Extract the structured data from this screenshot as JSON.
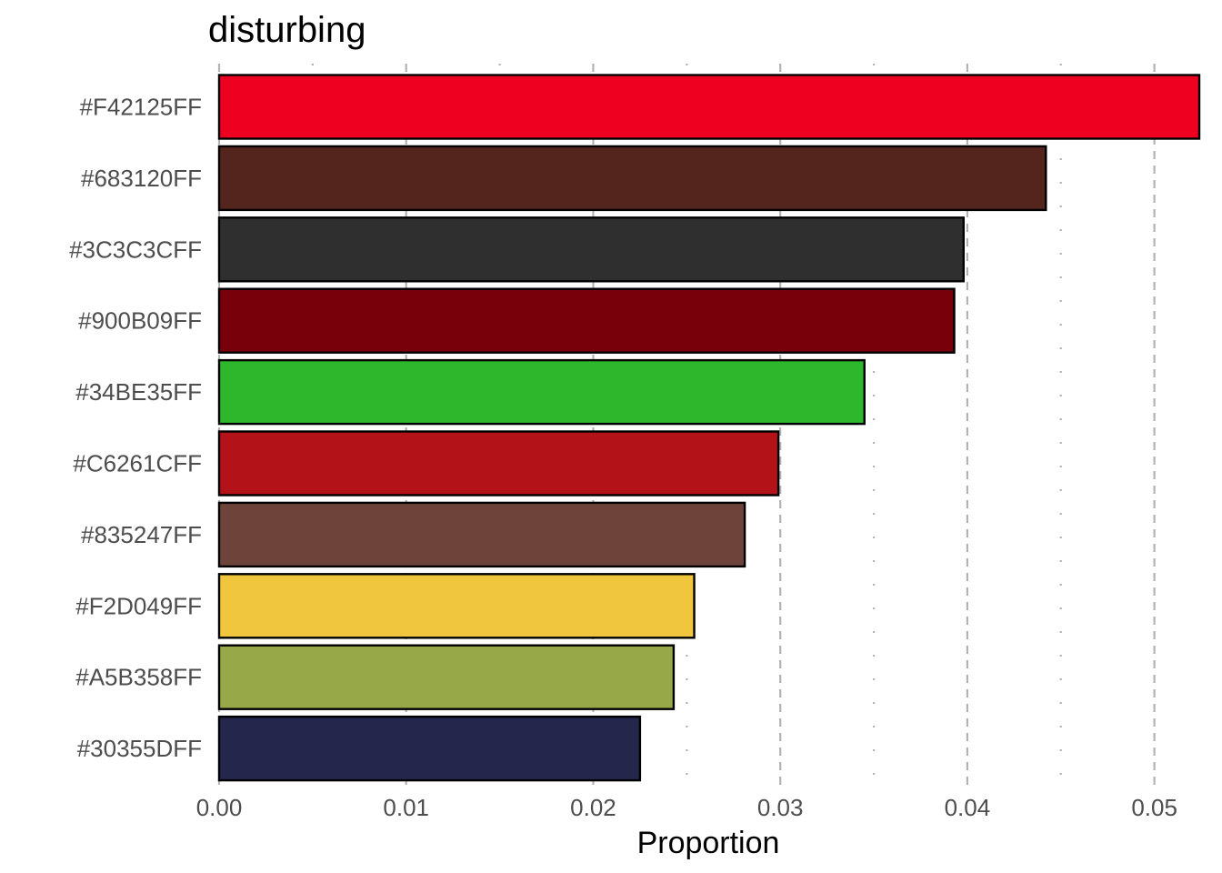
{
  "chart_data": {
    "type": "bar",
    "orientation": "horizontal",
    "title": "disturbing",
    "xlabel": "Proportion",
    "ylabel": "",
    "categories": [
      "#F42125FF",
      "#683120FF",
      "#3C3C3CFF",
      "#900B09FF",
      "#34BE35FF",
      "#C6261CFF",
      "#835247FF",
      "#F2D049FF",
      "#A5B358FF",
      "#30355DFF"
    ],
    "values": [
      0.0524,
      0.0442,
      0.0398,
      0.0393,
      0.0345,
      0.0299,
      0.0281,
      0.0254,
      0.0243,
      0.0225
    ],
    "bar_colors": [
      "#EE0020",
      "#53251D",
      "#2F2F2F",
      "#77000A",
      "#2EB72D",
      "#B31318",
      "#6E433A",
      "#EFC63E",
      "#97A848",
      "#24264B"
    ],
    "xticks": [
      "0.00",
      "0.01",
      "0.02",
      "0.03",
      "0.04",
      "0.05"
    ],
    "xtick_values": [
      0,
      0.01,
      0.02,
      0.03,
      0.04,
      0.05
    ],
    "xlim": [
      0,
      0.0524
    ],
    "grid": "vertical dashed",
    "legend": "none"
  }
}
